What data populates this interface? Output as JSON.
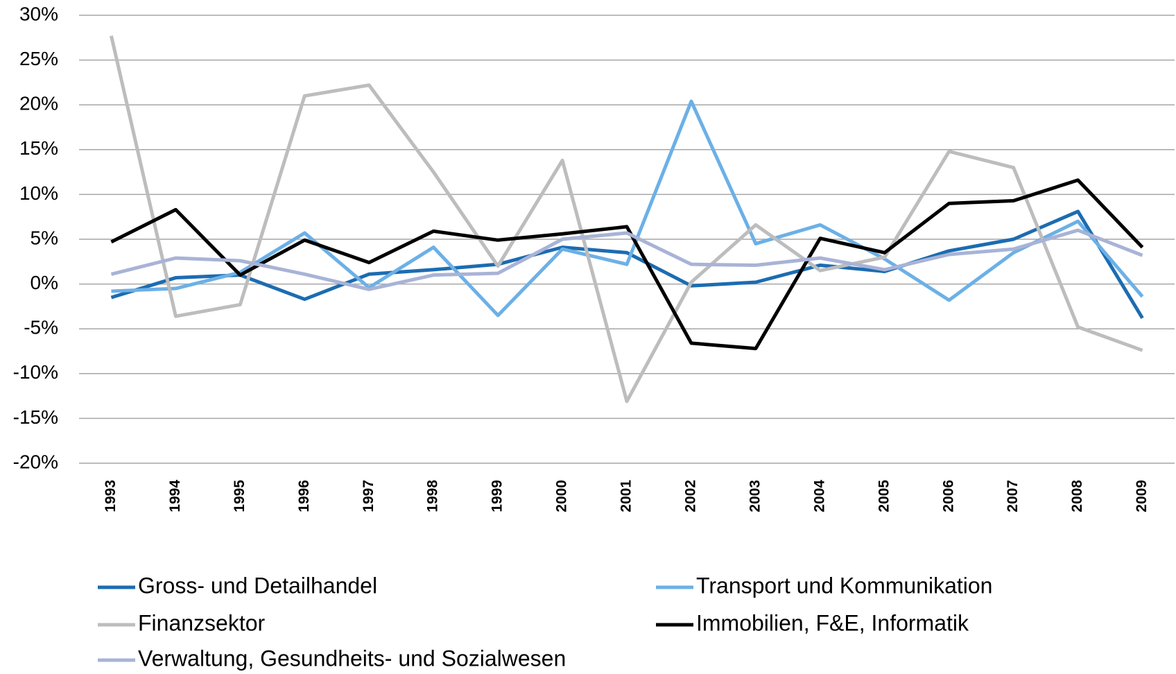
{
  "chart_data": {
    "type": "line",
    "categories": [
      "1993",
      "1994",
      "1995",
      "1996",
      "1997",
      "1998",
      "1999",
      "2000",
      "2001",
      "2002",
      "2003",
      "2004",
      "2005",
      "2006",
      "2007",
      "2008",
      "2009"
    ],
    "series": [
      {
        "name": "Gross- und Detailhandel",
        "color": "#1c6cb1",
        "values": [
          -1.5,
          0.7,
          1.0,
          -1.7,
          1.1,
          1.6,
          2.2,
          4.1,
          3.5,
          -0.2,
          0.2,
          2.1,
          1.4,
          3.7,
          5.0,
          8.1,
          -3.8
        ]
      },
      {
        "name": "Transport und Kommunikation",
        "color": "#6cb0e6",
        "values": [
          -0.8,
          -0.5,
          1.3,
          5.7,
          -0.4,
          4.1,
          -3.5,
          3.9,
          2.2,
          20.4,
          4.5,
          6.6,
          2.8,
          -1.8,
          3.5,
          7.0,
          -1.4
        ]
      },
      {
        "name": "Finanzsektor",
        "color": "#bdbdbd",
        "values": [
          27.7,
          -3.6,
          -2.3,
          21.0,
          22.2,
          12.5,
          2.0,
          13.8,
          -13.1,
          0.2,
          6.6,
          1.5,
          3.0,
          14.8,
          13.0,
          -4.8,
          -7.4
        ]
      },
      {
        "name": "Immobilien, F&E, Informatik",
        "color": "#000000",
        "values": [
          4.7,
          8.3,
          1.0,
          4.9,
          2.4,
          5.9,
          4.9,
          5.6,
          6.4,
          -6.6,
          -7.2,
          5.1,
          3.5,
          9.0,
          9.3,
          11.6,
          4.1
        ]
      },
      {
        "name": "Verwaltung, Gesundheits- und Sozialwesen",
        "color": "#a8b3d6",
        "values": [
          1.1,
          2.9,
          2.6,
          1.1,
          -0.6,
          1.0,
          1.2,
          5.0,
          5.7,
          2.2,
          2.1,
          2.9,
          1.6,
          3.3,
          3.9,
          6.0,
          3.2
        ]
      }
    ],
    "ylim": [
      -20,
      30
    ],
    "yticks": [
      {
        "value": -20,
        "label": "-20%"
      },
      {
        "value": -15,
        "label": "-15%"
      },
      {
        "value": -10,
        "label": "-10%"
      },
      {
        "value": -5,
        "label": "-5%"
      },
      {
        "value": 0,
        "label": "0%"
      },
      {
        "value": 5,
        "label": "5%"
      },
      {
        "value": 10,
        "label": "10%"
      },
      {
        "value": 15,
        "label": "15%"
      },
      {
        "value": 20,
        "label": "20%"
      },
      {
        "value": 25,
        "label": "25%"
      },
      {
        "value": 30,
        "label": "30%"
      }
    ],
    "grid": true,
    "legend": "bottom"
  }
}
